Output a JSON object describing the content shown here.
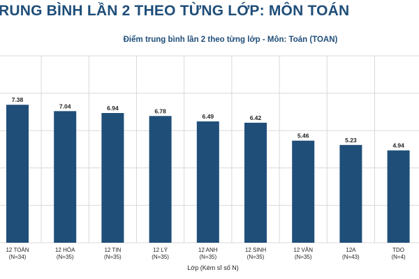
{
  "page_heading": "RUNG BÌNH LẦN 2 THEO TỪNG LỚP: MÔN TOÁN",
  "colors": {
    "bar": "#1f4e79",
    "heading": "#1f4e79",
    "grid": "#d9d9d9"
  },
  "chart_data": {
    "type": "bar",
    "title": "Điểm trung bình lần 2 theo từng lớp - Môn: Toán (TOAN)",
    "xlabel": "Lớp (Kèm sĩ số N)",
    "ylabel": "",
    "categories": [
      "12 TOÁN",
      "12 HÓA",
      "12 TIN",
      "12 LÝ",
      "12 ANH",
      "12 SINH",
      "12 VĂN",
      "12A",
      "TDO"
    ],
    "category_counts": [
      "(N=34)",
      "(N=35)",
      "(N=35)",
      "(N=35)",
      "(N=35)",
      "(N=35)",
      "(N=35)",
      "(N=43)",
      "(N=4)"
    ],
    "values": [
      7.38,
      7.04,
      6.94,
      6.78,
      6.49,
      6.42,
      5.46,
      5.23,
      4.94
    ],
    "value_labels": [
      "7.38",
      "7.04",
      "6.94",
      "6.78",
      "6.49",
      "6.42",
      "5.46",
      "5.23",
      "4.94"
    ],
    "ylim": [
      0,
      10
    ],
    "grid": true
  }
}
